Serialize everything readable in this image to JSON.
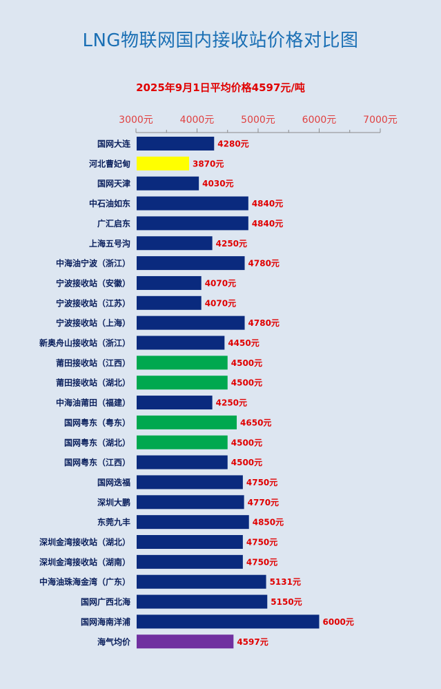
{
  "title": "LNG物联网国内接收站价格对比图",
  "subtitle": "2025年9月1日平均价格4597元/吨",
  "colors": {
    "navy": "#0a2a7e",
    "yellow": "#ffff00",
    "green": "#00a84f",
    "purple": "#7030a0",
    "label": "#e00000",
    "tick": "#e04040",
    "category": "#0a1f5c"
  },
  "chart_data": {
    "type": "bar",
    "orientation": "horizontal",
    "xlim": [
      3000,
      7000
    ],
    "xticks": [
      3000,
      4000,
      5000,
      6000,
      7000
    ],
    "tick_suffix": "元",
    "value_suffix": "元",
    "grid": false,
    "categories": [
      "国网大连",
      "河北曹妃甸",
      "国网天津",
      "中石油如东",
      "广汇启东",
      "上海五号沟",
      "中海油宁波（浙江）",
      "宁波接收站（安徽）",
      "宁波接收站（江苏）",
      "宁波接收站（上海）",
      "新奥舟山接收站（浙江）",
      "莆田接收站（江西）",
      "莆田接收站（湖北）",
      "中海油莆田（福建）",
      "国网粤东（粤东）",
      "国网粤东（湖北）",
      "国网粤东（江西）",
      "国网迭福",
      "深圳大鹏",
      "东莞九丰",
      "深圳金湾接收站（湖北）",
      "深圳金湾接收站（湖南）",
      "中海油珠海金湾（广东）",
      "国网广西北海",
      "国网海南洋浦",
      "海气均价"
    ],
    "values": [
      4280,
      3870,
      4030,
      4840,
      4840,
      4250,
      4780,
      4070,
      4070,
      4780,
      4450,
      4500,
      4500,
      4250,
      4650,
      4500,
      4500,
      4750,
      4770,
      4850,
      4750,
      4750,
      5131,
      5150,
      6000,
      4597
    ],
    "bar_colors": [
      "navy",
      "yellow",
      "navy",
      "navy",
      "navy",
      "navy",
      "navy",
      "navy",
      "navy",
      "navy",
      "navy",
      "green",
      "green",
      "navy",
      "green",
      "green",
      "navy",
      "navy",
      "navy",
      "navy",
      "navy",
      "navy",
      "navy",
      "navy",
      "navy",
      "purple"
    ]
  }
}
